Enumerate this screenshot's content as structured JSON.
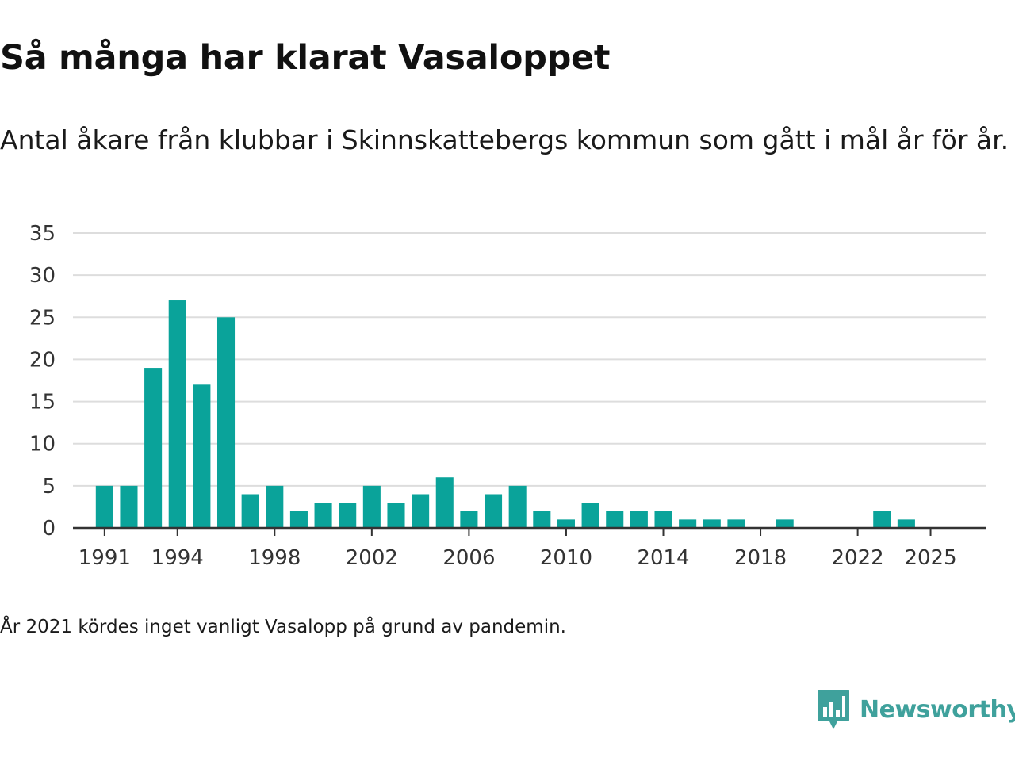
{
  "title": "Så många har klarat Vasaloppet",
  "subtitle": "Antal åkare från klubbar i Skinnskattebergs kommun som gått i mål år för år.",
  "note": "År 2021 kördes inget vanligt Vasalopp på grund av pandemin.",
  "brand": {
    "name": "Newsworthy",
    "color": "#3fa19c",
    "icon": "newsworthy-logo-icon"
  },
  "colors": {
    "bar": "#0aa39a",
    "grid": "#dddddd",
    "axis": "#333333"
  },
  "chart_data": {
    "type": "bar",
    "title": "Så många har klarat Vasaloppet",
    "xlabel": "",
    "ylabel": "",
    "ylim": [
      0,
      35
    ],
    "yticks": [
      0,
      5,
      10,
      15,
      20,
      25,
      30,
      35
    ],
    "xlim": [
      1989.7,
      2027.3
    ],
    "xticks": [
      1991,
      1994,
      1998,
      2002,
      2006,
      2010,
      2014,
      2018,
      2022,
      2025
    ],
    "grid": true,
    "years": [
      1991,
      1992,
      1993,
      1994,
      1995,
      1996,
      1997,
      1998,
      1999,
      2000,
      2001,
      2002,
      2003,
      2004,
      2005,
      2006,
      2007,
      2008,
      2009,
      2010,
      2011,
      2012,
      2013,
      2014,
      2015,
      2016,
      2017,
      2018,
      2019,
      2020,
      2021,
      2022,
      2023,
      2024,
      2025
    ],
    "values": [
      5,
      5,
      19,
      27,
      17,
      25,
      4,
      5,
      2,
      3,
      3,
      5,
      3,
      4,
      6,
      2,
      4,
      5,
      2,
      1,
      3,
      2,
      2,
      2,
      1,
      1,
      1,
      0,
      1,
      0,
      0,
      0,
      2,
      1,
      0
    ]
  }
}
